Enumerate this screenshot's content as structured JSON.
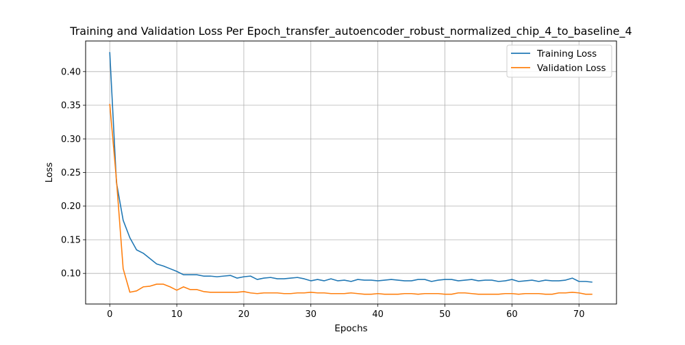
{
  "chart_data": {
    "type": "line",
    "title": "Training and Validation Loss Per Epoch_transfer_autoencoder_robust_normalized_chip_4_to_baseline_4",
    "xlabel": "Epochs",
    "ylabel": "Loss",
    "xlim": [
      -3.6,
      75.6
    ],
    "ylim": [
      0.0545,
      0.4455
    ],
    "xticks": [
      0,
      10,
      20,
      30,
      40,
      50,
      60,
      70
    ],
    "yticks": [
      0.1,
      0.15,
      0.2,
      0.25,
      0.3,
      0.35,
      0.4
    ],
    "ytick_labels": [
      "0.10",
      "0.15",
      "0.20",
      "0.25",
      "0.30",
      "0.35",
      "0.40"
    ],
    "grid": true,
    "legend": {
      "placement": "top-right"
    },
    "x": [
      0,
      1,
      2,
      3,
      4,
      5,
      6,
      7,
      8,
      9,
      10,
      11,
      12,
      13,
      14,
      15,
      16,
      17,
      18,
      19,
      20,
      21,
      22,
      23,
      24,
      25,
      26,
      27,
      28,
      29,
      30,
      31,
      32,
      33,
      34,
      35,
      36,
      37,
      38,
      39,
      40,
      41,
      42,
      43,
      44,
      45,
      46,
      47,
      48,
      49,
      50,
      51,
      52,
      53,
      54,
      55,
      56,
      57,
      58,
      59,
      60,
      61,
      62,
      63,
      64,
      65,
      66,
      67,
      68,
      69,
      70,
      71,
      72
    ],
    "series": [
      {
        "name": "Training Loss",
        "color": "#1f77b4",
        "values": [
          0.429,
          0.235,
          0.179,
          0.153,
          0.135,
          0.13,
          0.122,
          0.114,
          0.111,
          0.107,
          0.103,
          0.098,
          0.098,
          0.098,
          0.096,
          0.096,
          0.095,
          0.096,
          0.097,
          0.093,
          0.095,
          0.096,
          0.091,
          0.093,
          0.094,
          0.092,
          0.092,
          0.093,
          0.094,
          0.092,
          0.089,
          0.091,
          0.089,
          0.092,
          0.089,
          0.09,
          0.088,
          0.091,
          0.09,
          0.09,
          0.089,
          0.09,
          0.091,
          0.09,
          0.089,
          0.089,
          0.091,
          0.091,
          0.088,
          0.09,
          0.091,
          0.091,
          0.089,
          0.09,
          0.091,
          0.089,
          0.09,
          0.09,
          0.088,
          0.089,
          0.091,
          0.088,
          0.089,
          0.09,
          0.088,
          0.09,
          0.089,
          0.089,
          0.09,
          0.093,
          0.088,
          0.088,
          0.087
        ]
      },
      {
        "name": "Validation Loss",
        "color": "#ff7f0e",
        "values": [
          0.352,
          0.239,
          0.107,
          0.072,
          0.074,
          0.08,
          0.081,
          0.084,
          0.084,
          0.08,
          0.075,
          0.08,
          0.076,
          0.076,
          0.073,
          0.072,
          0.072,
          0.072,
          0.072,
          0.072,
          0.073,
          0.071,
          0.07,
          0.071,
          0.071,
          0.071,
          0.07,
          0.07,
          0.071,
          0.071,
          0.072,
          0.071,
          0.071,
          0.07,
          0.07,
          0.07,
          0.071,
          0.07,
          0.069,
          0.069,
          0.07,
          0.069,
          0.069,
          0.069,
          0.07,
          0.07,
          0.069,
          0.07,
          0.07,
          0.07,
          0.069,
          0.069,
          0.071,
          0.071,
          0.07,
          0.069,
          0.069,
          0.069,
          0.069,
          0.07,
          0.07,
          0.069,
          0.07,
          0.07,
          0.07,
          0.069,
          0.069,
          0.071,
          0.071,
          0.072,
          0.071,
          0.069,
          0.069
        ]
      }
    ]
  }
}
